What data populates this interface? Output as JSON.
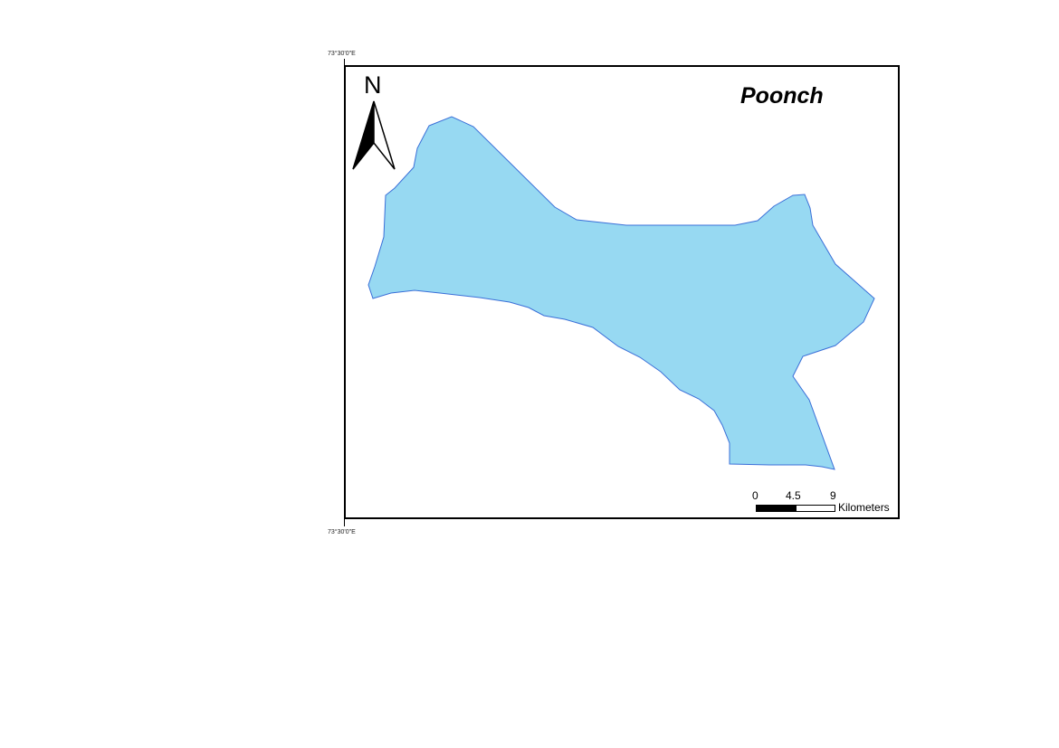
{
  "map": {
    "title": "Poonch",
    "coordinate_top": "73°30'0\"E",
    "coordinate_bottom": "73°30'0\"E",
    "north_label": "N",
    "fill_color": "#97d9f2",
    "outline_color": "#3a6fd8"
  },
  "scale_bar": {
    "label_start": "0",
    "label_mid": "4.5",
    "label_end": "9",
    "unit": "Kilometers"
  }
}
